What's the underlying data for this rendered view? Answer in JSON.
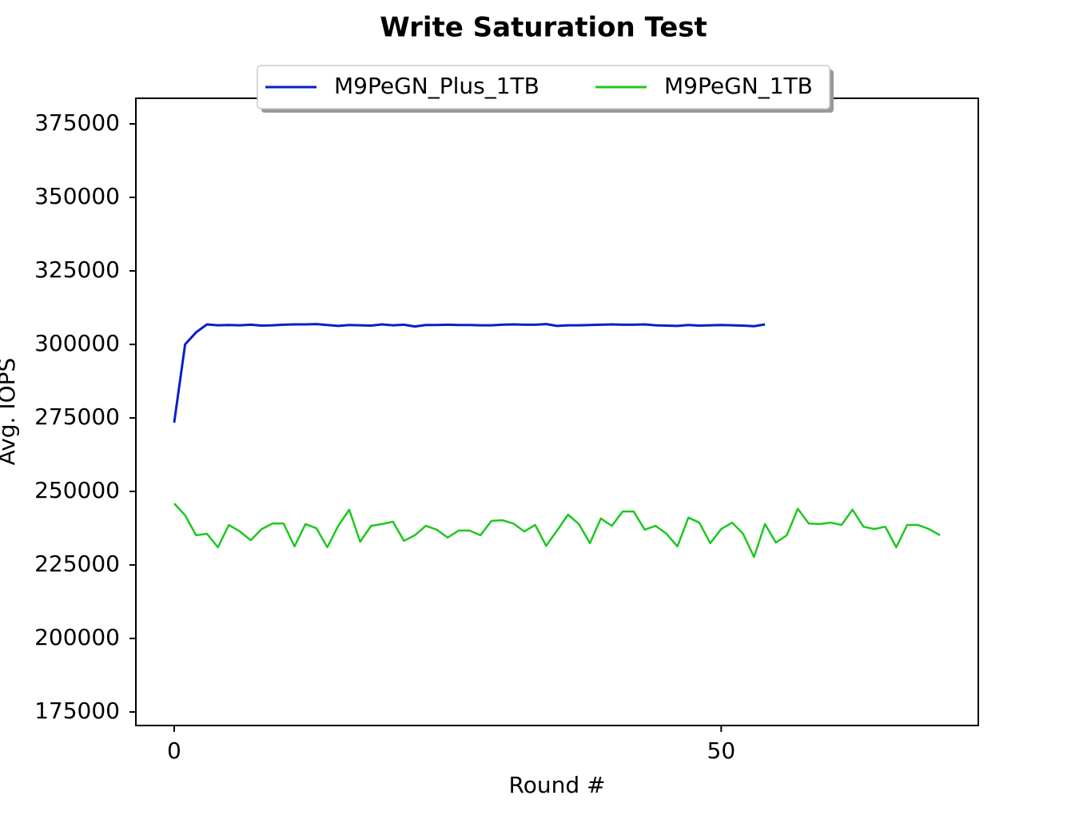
{
  "chart_data": {
    "type": "line",
    "title": "Write Saturation Test",
    "x_label": "Round #",
    "y_label": "Avg. IOPS",
    "x": [
      0,
      1,
      2,
      3,
      4,
      5,
      6,
      7,
      8,
      9,
      10,
      11,
      12,
      13,
      14,
      15,
      16,
      17,
      18,
      19,
      20,
      21,
      22,
      23,
      24,
      25,
      26,
      27,
      28,
      29,
      30,
      31,
      32,
      33,
      34,
      35,
      36,
      37,
      38,
      39,
      40,
      41,
      42,
      43,
      44,
      45,
      46,
      47,
      48,
      49,
      50,
      51,
      52,
      53,
      54,
      55,
      56,
      57,
      58,
      59,
      60,
      61,
      62,
      63,
      64,
      65,
      66,
      67,
      68,
      69,
      70
    ],
    "series": [
      {
        "name": "M9PeGN_Plus_1TB",
        "color": "#0a1ec8",
        "values": [
          273400,
          300000,
          304100,
          306800,
          306500,
          306600,
          306500,
          306700,
          306400,
          306500,
          306700,
          306800,
          306800,
          306900,
          306600,
          306300,
          306600,
          306500,
          306400,
          306800,
          306500,
          306700,
          306100,
          306600,
          306600,
          306700,
          306600,
          306600,
          306500,
          306500,
          306700,
          306800,
          306700,
          306700,
          306900,
          306300,
          306500,
          306500,
          306600,
          306700,
          306800,
          306700,
          306700,
          306800,
          306500,
          306400,
          306300,
          306600,
          306400,
          306500,
          306600,
          306500,
          306400,
          306200,
          306800,
          null,
          null,
          null,
          null,
          null,
          null,
          null,
          null,
          null,
          null,
          null,
          null,
          null,
          null,
          null,
          null
        ]
      },
      {
        "name": "M9PeGN_1TB",
        "color": "#1ec81e",
        "values": [
          245900,
          241900,
          235100,
          235600,
          231000,
          238600,
          236400,
          233400,
          237200,
          239100,
          239100,
          231300,
          238900,
          237500,
          231000,
          238300,
          243800,
          232900,
          238300,
          238900,
          239700,
          233200,
          235100,
          238300,
          237000,
          234300,
          236700,
          236700,
          235100,
          240000,
          240200,
          239100,
          236400,
          238600,
          231500,
          236700,
          242100,
          238900,
          232400,
          240800,
          238300,
          243200,
          243200,
          237000,
          238300,
          235600,
          231300,
          241100,
          239400,
          232400,
          237200,
          239400,
          235600,
          227700,
          238900,
          232600,
          235100,
          244100,
          239100,
          238900,
          239400,
          238600,
          243800,
          238000,
          237200,
          238000,
          231000,
          238600,
          238600,
          237200,
          235100
        ]
      }
    ],
    "xlim": [
      -3.5,
      73.5
    ],
    "xticks": [
      0,
      50
    ],
    "ylim": [
      170400,
      383700
    ],
    "yticks": [
      175000,
      200000,
      225000,
      250000,
      275000,
      300000,
      325000,
      350000,
      375000
    ],
    "legend": "upper center"
  }
}
